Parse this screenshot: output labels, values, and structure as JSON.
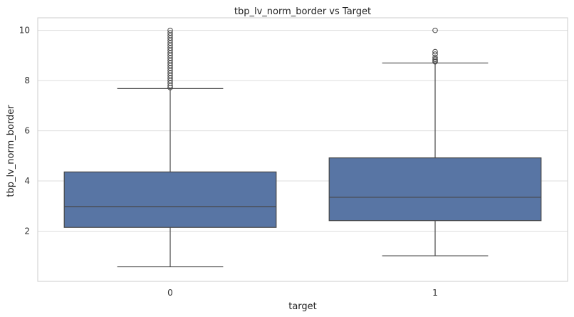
{
  "chart_data": {
    "type": "box",
    "title": "tbp_lv_norm_border vs Target",
    "xlabel": "target",
    "ylabel": "tbp_lv_norm_border",
    "categories": [
      "0",
      "1"
    ],
    "ylim": [
      0.0,
      10.5
    ],
    "yticks": [
      2,
      4,
      6,
      8,
      10
    ],
    "grid": true,
    "box_color": "#5875a4",
    "line_color": "#474747",
    "boxes": [
      {
        "category": "0",
        "whisker_low": 0.58,
        "q1": 2.15,
        "median": 2.98,
        "q3": 4.36,
        "whisker_high": 7.68,
        "outliers": [
          7.72,
          7.8,
          7.9,
          8.0,
          8.1,
          8.2,
          8.3,
          8.4,
          8.5,
          8.6,
          8.7,
          8.8,
          8.9,
          9.0,
          9.1,
          9.2,
          9.3,
          9.4,
          9.5,
          9.6,
          9.7,
          9.8,
          9.9,
          10.0
        ]
      },
      {
        "category": "1",
        "whisker_low": 1.02,
        "q1": 2.42,
        "median": 3.35,
        "q3": 4.92,
        "whisker_high": 8.7,
        "outliers": [
          8.75,
          8.8,
          8.85,
          8.92,
          9.05,
          9.15,
          10.0
        ]
      }
    ]
  }
}
